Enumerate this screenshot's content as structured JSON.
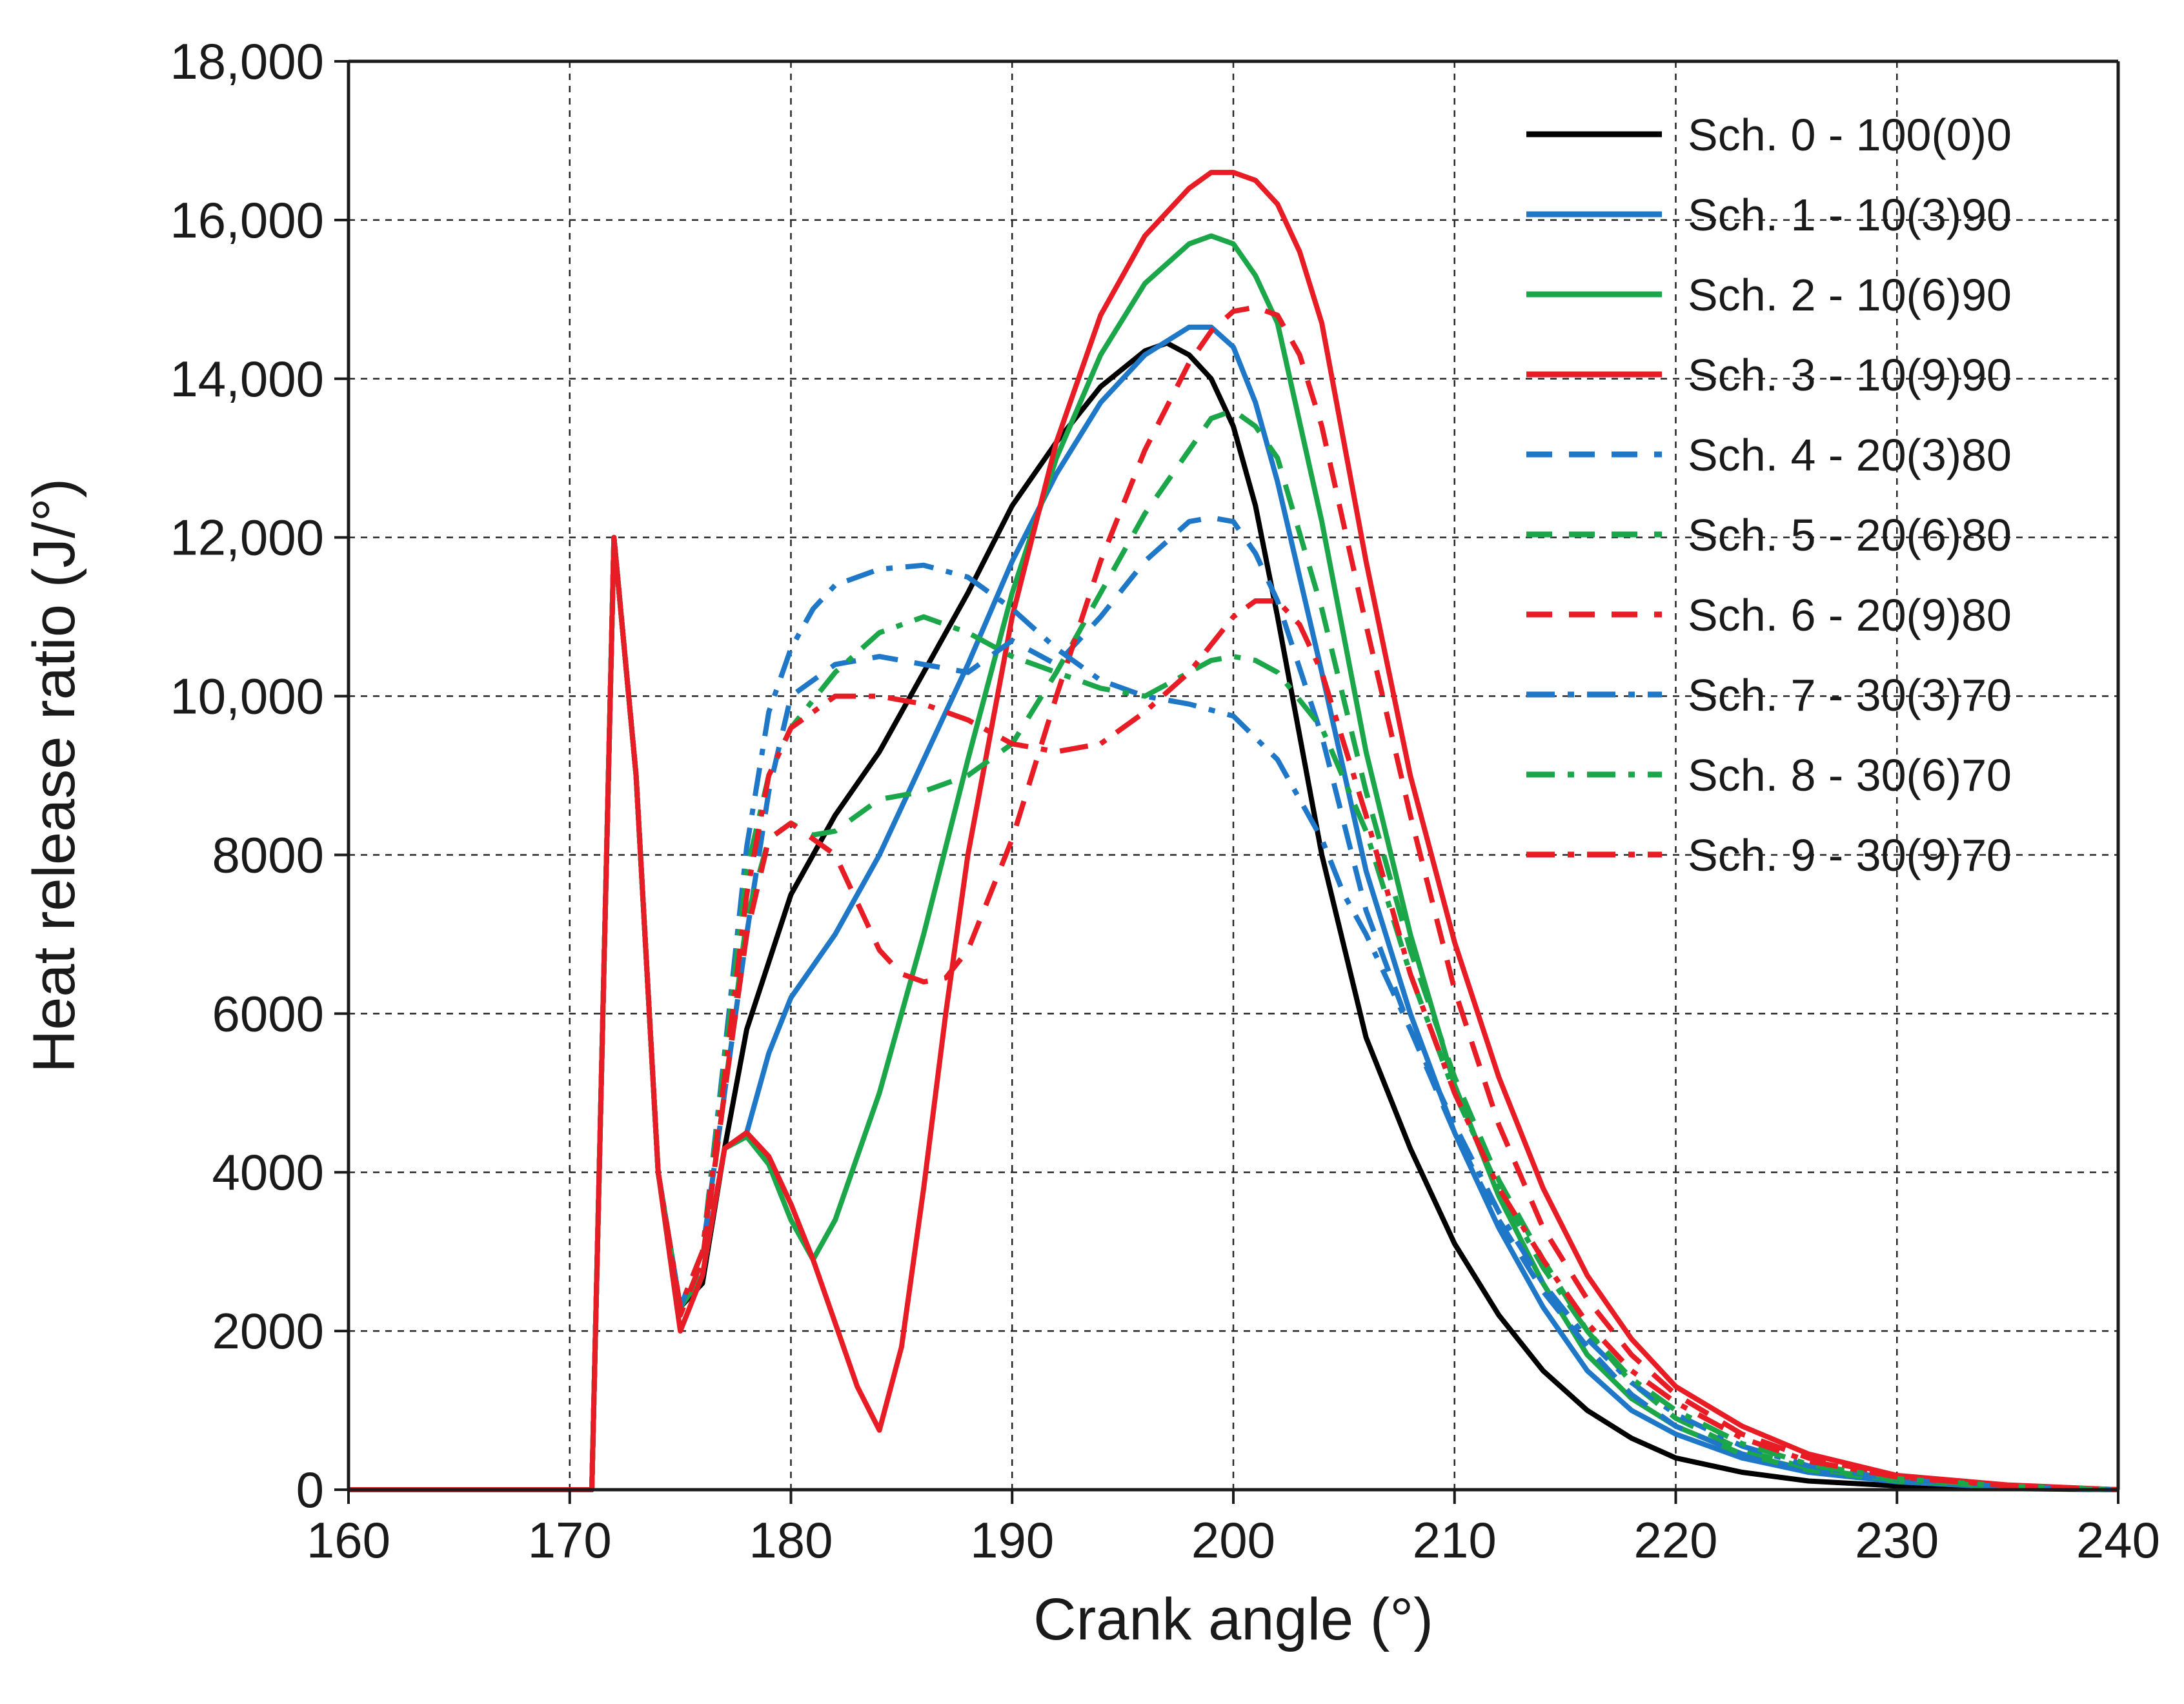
{
  "chart_data": {
    "type": "line",
    "title": "",
    "xlabel": "Crank angle (°)",
    "ylabel": "Heat release ratio (J/°)",
    "xlim": [
      160,
      240
    ],
    "ylim": [
      0,
      18000
    ],
    "x_ticks": [
      160,
      170,
      180,
      190,
      200,
      210,
      220,
      230,
      240
    ],
    "x_tick_labels": [
      "160",
      "170",
      "180",
      "190",
      "200",
      "210",
      "220",
      "230",
      "240"
    ],
    "y_ticks": [
      0,
      2000,
      4000,
      6000,
      8000,
      10000,
      12000,
      14000,
      16000,
      18000
    ],
    "y_tick_labels": [
      "0",
      "2000",
      "4000",
      "6000",
      "8000",
      "10,000",
      "12,000",
      "14,000",
      "16,000",
      "18,000"
    ],
    "grid": true,
    "legend_position": "top-right",
    "series": [
      {
        "name": "Sch. 0 - 100(0)0",
        "color": "#000000",
        "dash": "solid",
        "x": [
          160,
          170,
          171,
          172,
          173,
          174,
          175,
          176,
          177,
          178,
          180,
          182,
          184,
          186,
          188,
          190,
          192,
          194,
          196,
          197,
          198,
          199,
          200,
          201,
          202,
          204,
          206,
          208,
          210,
          212,
          214,
          216,
          218,
          220,
          223,
          226,
          230,
          235,
          240
        ],
        "y": [
          0,
          0,
          0,
          12000,
          9000,
          4000,
          2300,
          2600,
          4300,
          5800,
          7500,
          8500,
          9300,
          10300,
          11300,
          12400,
          13200,
          13900,
          14350,
          14450,
          14300,
          14000,
          13400,
          12400,
          11000,
          8000,
          5700,
          4300,
          3100,
          2200,
          1500,
          1000,
          650,
          400,
          220,
          110,
          50,
          15,
          0
        ]
      },
      {
        "name": "Sch. 1 - 10(3)90",
        "color": "#1f77c8",
        "dash": "solid",
        "x": [
          160,
          170,
          171,
          172,
          173,
          174,
          175,
          176,
          177,
          178,
          179,
          180,
          182,
          184,
          186,
          188,
          190,
          192,
          194,
          196,
          198,
          199,
          200,
          201,
          202,
          204,
          206,
          208,
          210,
          212,
          214,
          216,
          218,
          220,
          223,
          226,
          230,
          235,
          240
        ],
        "y": [
          0,
          0,
          0,
          12000,
          9000,
          4000,
          2300,
          2700,
          4300,
          4500,
          5500,
          6200,
          7000,
          8000,
          9200,
          10400,
          11700,
          12800,
          13700,
          14300,
          14650,
          14650,
          14400,
          13700,
          12700,
          10300,
          7800,
          6000,
          4500,
          3300,
          2300,
          1500,
          1000,
          700,
          400,
          220,
          100,
          30,
          0
        ]
      },
      {
        "name": "Sch. 2 - 10(6)90",
        "color": "#1ba64a",
        "dash": "solid",
        "x": [
          160,
          170,
          171,
          172,
          173,
          174,
          175,
          176,
          177,
          178,
          179,
          180,
          181,
          182,
          184,
          186,
          188,
          190,
          192,
          194,
          196,
          198,
          199,
          200,
          201,
          202,
          204,
          206,
          208,
          210,
          212,
          214,
          216,
          218,
          220,
          223,
          226,
          230,
          235,
          240
        ],
        "y": [
          0,
          0,
          0,
          12000,
          9000,
          4000,
          2300,
          2700,
          4300,
          4450,
          4100,
          3400,
          2900,
          3400,
          5000,
          7000,
          9200,
          11300,
          13000,
          14300,
          15200,
          15700,
          15800,
          15700,
          15300,
          14700,
          12200,
          9300,
          7000,
          5100,
          3700,
          2600,
          1700,
          1150,
          800,
          450,
          250,
          110,
          35,
          0
        ]
      },
      {
        "name": "Sch. 3 - 10(9)90",
        "color": "#e81c24",
        "dash": "solid",
        "x": [
          160,
          170,
          171,
          172,
          173,
          174,
          175,
          176,
          177,
          178,
          179,
          180,
          181,
          182,
          183,
          184,
          185,
          186,
          187,
          188,
          190,
          192,
          194,
          196,
          198,
          199,
          200,
          201,
          202,
          203,
          204,
          206,
          208,
          210,
          212,
          214,
          216,
          218,
          220,
          223,
          226,
          230,
          235,
          240
        ],
        "y": [
          0,
          0,
          0,
          12000,
          9000,
          4000,
          2000,
          2700,
          4300,
          4500,
          4200,
          3600,
          2900,
          2100,
          1300,
          750,
          1800,
          3800,
          6000,
          8000,
          11000,
          13200,
          14800,
          15800,
          16400,
          16600,
          16600,
          16500,
          16200,
          15600,
          14700,
          11700,
          9000,
          6900,
          5200,
          3800,
          2700,
          1900,
          1300,
          800,
          450,
          180,
          60,
          0
        ]
      },
      {
        "name": "Sch. 4 - 20(3)80",
        "color": "#1f77c8",
        "dash": "dash",
        "x": [
          160,
          170,
          171,
          172,
          173,
          174,
          175,
          176,
          177,
          178,
          179,
          180,
          182,
          184,
          186,
          188,
          190,
          192,
          194,
          196,
          198,
          199,
          200,
          201,
          202,
          204,
          206,
          208,
          210,
          212,
          214,
          216,
          218,
          220,
          223,
          226,
          230,
          235,
          240
        ],
        "y": [
          0,
          0,
          0,
          12000,
          9000,
          4000,
          2300,
          3000,
          5000,
          7000,
          8800,
          10000,
          10400,
          10500,
          10400,
          10300,
          10700,
          10400,
          11000,
          11700,
          12200,
          12250,
          12200,
          11800,
          11200,
          9500,
          7300,
          5800,
          4500,
          3400,
          2500,
          1800,
          1200,
          800,
          450,
          240,
          100,
          30,
          0
        ]
      },
      {
        "name": "Sch. 5 - 20(6)80",
        "color": "#1ba64a",
        "dash": "dash",
        "x": [
          160,
          170,
          171,
          172,
          173,
          174,
          175,
          176,
          177,
          178,
          179,
          180,
          181,
          182,
          184,
          186,
          188,
          190,
          192,
          194,
          196,
          198,
          199,
          200,
          201,
          202,
          204,
          206,
          208,
          210,
          212,
          214,
          216,
          218,
          220,
          223,
          226,
          230,
          235,
          240
        ],
        "y": [
          0,
          0,
          0,
          12000,
          9000,
          4000,
          2200,
          2900,
          5000,
          7200,
          8200,
          8400,
          8250,
          8300,
          8700,
          8800,
          9000,
          9400,
          10300,
          11300,
          12300,
          13100,
          13500,
          13600,
          13400,
          13000,
          11100,
          8800,
          6800,
          5200,
          3900,
          2900,
          2000,
          1350,
          900,
          500,
          270,
          120,
          35,
          0
        ]
      },
      {
        "name": "Sch. 6 - 20(9)80",
        "color": "#e81c24",
        "dash": "dash",
        "x": [
          160,
          170,
          171,
          172,
          173,
          174,
          175,
          176,
          177,
          178,
          179,
          180,
          182,
          184,
          185,
          186,
          187,
          188,
          190,
          192,
          194,
          196,
          198,
          199,
          200,
          201,
          202,
          203,
          204,
          206,
          208,
          210,
          212,
          214,
          216,
          218,
          220,
          223,
          226,
          230,
          235,
          240
        ],
        "y": [
          0,
          0,
          0,
          12000,
          9000,
          4000,
          2200,
          2900,
          5000,
          7000,
          8200,
          8400,
          8000,
          6800,
          6500,
          6400,
          6450,
          6800,
          8200,
          10000,
          11700,
          13100,
          14200,
          14600,
          14850,
          14900,
          14800,
          14300,
          13400,
          10900,
          8500,
          6300,
          4600,
          3300,
          2400,
          1700,
          1200,
          700,
          400,
          170,
          55,
          0
        ]
      },
      {
        "name": "Sch. 7 - 30(3)70",
        "color": "#1f77c8",
        "dash": "dashdot",
        "x": [
          160,
          170,
          171,
          172,
          173,
          174,
          175,
          176,
          177,
          178,
          179,
          180,
          181,
          182,
          184,
          186,
          188,
          190,
          192,
          194,
          196,
          198,
          200,
          202,
          204,
          205,
          206,
          208,
          210,
          212,
          214,
          216,
          218,
          220,
          223,
          226,
          230,
          235,
          240
        ],
        "y": [
          0,
          0,
          0,
          12000,
          9000,
          4000,
          2300,
          3000,
          5500,
          8100,
          9800,
          10600,
          11100,
          11400,
          11600,
          11650,
          11500,
          11100,
          10600,
          10200,
          10000,
          9900,
          9750,
          9200,
          8200,
          7500,
          7000,
          5800,
          4600,
          3500,
          2600,
          1900,
          1350,
          950,
          550,
          300,
          130,
          40,
          0
        ]
      },
      {
        "name": "Sch. 8 - 30(6)70",
        "color": "#1ba64a",
        "dash": "dashdot",
        "x": [
          160,
          170,
          171,
          172,
          173,
          174,
          175,
          176,
          177,
          178,
          179,
          180,
          182,
          184,
          186,
          188,
          190,
          192,
          194,
          196,
          198,
          199,
          200,
          201,
          202,
          204,
          206,
          208,
          210,
          212,
          214,
          216,
          218,
          220,
          223,
          226,
          230,
          235,
          240
        ],
        "y": [
          0,
          0,
          0,
          12000,
          9000,
          4000,
          2300,
          3000,
          5400,
          7800,
          9000,
          9600,
          10300,
          10800,
          11000,
          10800,
          10500,
          10300,
          10100,
          10000,
          10300,
          10450,
          10500,
          10450,
          10300,
          9600,
          8300,
          6500,
          5000,
          3800,
          2800,
          2000,
          1400,
          1000,
          580,
          320,
          140,
          45,
          0
        ]
      },
      {
        "name": "Sch. 9 - 30(9)70",
        "color": "#e81c24",
        "dash": "dashdot",
        "x": [
          160,
          170,
          171,
          172,
          173,
          174,
          175,
          176,
          177,
          178,
          179,
          180,
          182,
          184,
          186,
          188,
          190,
          192,
          194,
          196,
          198,
          200,
          201,
          202,
          203,
          204,
          206,
          208,
          210,
          212,
          214,
          216,
          218,
          220,
          223,
          226,
          230,
          235,
          240
        ],
        "y": [
          0,
          0,
          0,
          12000,
          9000,
          4000,
          2300,
          3000,
          5200,
          7500,
          9000,
          9600,
          10000,
          10000,
          9900,
          9700,
          9400,
          9300,
          9400,
          9800,
          10300,
          11000,
          11200,
          11200,
          10900,
          10300,
          8500,
          6500,
          5000,
          3800,
          2900,
          2100,
          1500,
          1100,
          650,
          360,
          160,
          50,
          0
        ]
      }
    ]
  }
}
